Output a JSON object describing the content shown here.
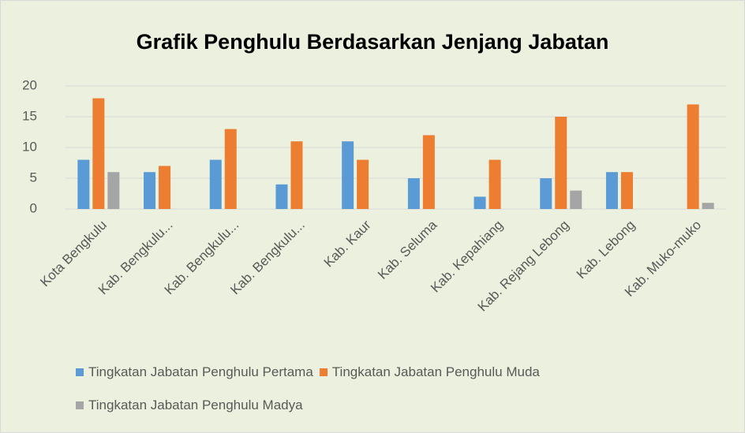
{
  "chart_data": {
    "type": "bar",
    "title": "Grafik Penghulu Berdasarkan Jenjang Jabatan",
    "categories": [
      "Kota Bengkulu",
      "Kab. Bengkulu...",
      "Kab. Bengkulu...",
      "Kab. Bengkulu...",
      "Kab. Kaur",
      "Kab. Seluma",
      "Kab. Kepahiang",
      "Kab. Rejang Lebong",
      "Kab. Lebong",
      "Kab. Muko-muko"
    ],
    "series": [
      {
        "name": "Tingkatan Jabatan Penghulu Pertama",
        "color": "#5b9bd5",
        "values": [
          8,
          6,
          8,
          4,
          11,
          5,
          2,
          5,
          6,
          0
        ]
      },
      {
        "name": "Tingkatan Jabatan Penghulu Muda",
        "color": "#ed7d31",
        "values": [
          18,
          7,
          13,
          11,
          8,
          12,
          8,
          15,
          6,
          17
        ]
      },
      {
        "name": "Tingkatan Jabatan Penghulu Madya",
        "color": "#a5a5a5",
        "values": [
          6,
          0,
          0,
          0,
          0,
          0,
          0,
          3,
          0,
          1
        ]
      }
    ],
    "ylim": [
      0,
      20
    ],
    "yticks": [
      0,
      5,
      10,
      15,
      20
    ],
    "grid": true,
    "legend": "bottom"
  }
}
